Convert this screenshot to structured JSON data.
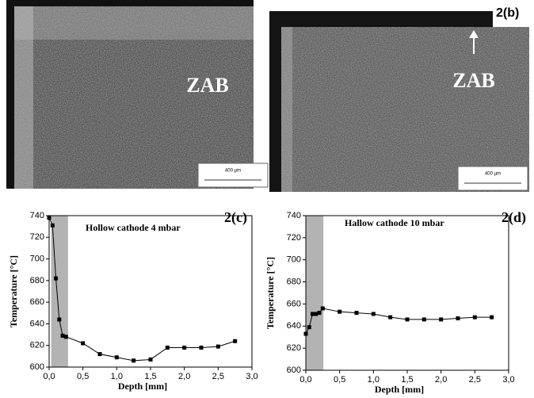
{
  "micrographs": [
    {
      "label": "ZAB",
      "scale": "400 µm"
    },
    {
      "label": "ZAB",
      "tag": "2(b)",
      "scale": "400 µm"
    }
  ],
  "chart_data": [
    {
      "type": "line",
      "title": "Hollow cathode 4 mbar",
      "tag": "2(c)",
      "x_label": "Depth [mm]",
      "y_label": "Temperature [°C]",
      "x": [
        0,
        0.05,
        0.1,
        0.15,
        0.2,
        0.25,
        0.5,
        0.75,
        1.0,
        1.25,
        1.5,
        1.75,
        2.0,
        2.25,
        2.5,
        2.75
      ],
      "series": [
        {
          "color": "#000000",
          "values": [
            738,
            731,
            682,
            644,
            629,
            628,
            622,
            612,
            609,
            606,
            607,
            618,
            618,
            618,
            619,
            624
          ]
        }
      ],
      "highlight": [
        0.03,
        0.28
      ],
      "xlim": [
        0,
        3
      ],
      "ylim": [
        600,
        740
      ],
      "xticks": [
        {
          "value": 0,
          "label": "0,0"
        },
        {
          "value": 0.5,
          "label": "0,5"
        },
        {
          "value": 1,
          "label": "1,0"
        },
        {
          "value": 1.5,
          "label": "1,5"
        },
        {
          "value": 2,
          "label": "2,0"
        },
        {
          "value": 2.5,
          "label": "2,5"
        },
        {
          "value": 3,
          "label": "3,0"
        }
      ],
      "yticks": [
        600,
        620,
        640,
        660,
        680,
        700,
        720,
        740
      ]
    },
    {
      "type": "line",
      "title": "Hallow cathode 10 mbar",
      "tag": "2(d)",
      "x_label": "Depth [mm]",
      "y_label": "Temperature [°C]",
      "x": [
        0,
        0.05,
        0.1,
        0.15,
        0.2,
        0.25,
        0.5,
        0.75,
        1.0,
        1.25,
        1.5,
        1.75,
        2.0,
        2.25,
        2.5,
        2.75
      ],
      "series": [
        {
          "color": "#000000",
          "values": [
            633,
            639,
            651,
            651,
            652,
            656,
            653,
            652,
            651,
            648,
            646,
            646,
            646,
            647,
            648,
            648
          ]
        }
      ],
      "highlight": [
        0,
        0.26
      ],
      "xlim": [
        0,
        3
      ],
      "ylim": [
        600,
        740
      ],
      "xticks": [
        {
          "value": 0,
          "label": "0,0"
        },
        {
          "value": 0.5,
          "label": "0,5"
        },
        {
          "value": 1,
          "label": "1,0"
        },
        {
          "value": 1.5,
          "label": "1,5"
        },
        {
          "value": 2,
          "label": "2,0"
        },
        {
          "value": 2.5,
          "label": "2,5"
        },
        {
          "value": 3,
          "label": "3,0"
        }
      ],
      "yticks": [
        600,
        620,
        640,
        660,
        680,
        700,
        720,
        740
      ]
    }
  ]
}
